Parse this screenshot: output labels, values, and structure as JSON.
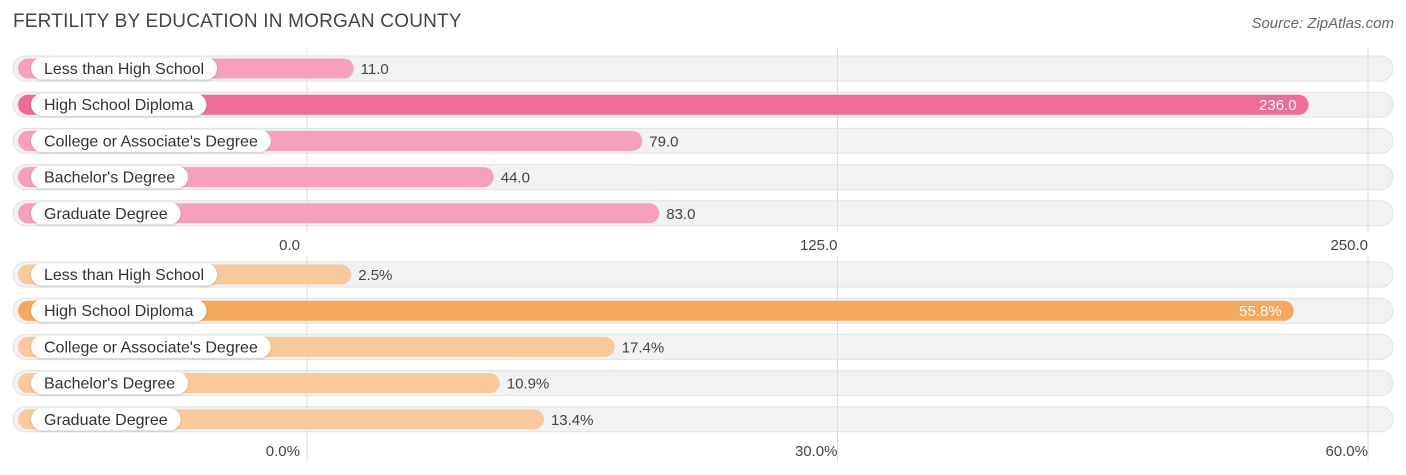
{
  "title": "FERTILITY BY EDUCATION IN MORGAN COUNTY",
  "source": "Source: ZipAtlas.com",
  "colors": {
    "count_bar": "#f7a0bc",
    "count_bar_highlight": "#f06b98",
    "percent_bar": "#f9c99b",
    "percent_bar_highlight": "#f5a95e",
    "track": "#efefef",
    "gridline": "#dddddd"
  },
  "chart_data": [
    {
      "type": "bar",
      "orientation": "horizontal",
      "categories": [
        "Less than High School",
        "High School Diploma",
        "College or Associate's Degree",
        "Bachelor's Degree",
        "Graduate Degree"
      ],
      "values": [
        11.0,
        236.0,
        79.0,
        44.0,
        83.0
      ],
      "value_labels": [
        "11.0",
        "236.0",
        "79.0",
        "44.0",
        "83.0"
      ],
      "highlight_index": 1,
      "xlim": [
        0,
        250
      ],
      "ticks": [
        0,
        125,
        250
      ],
      "tick_labels": [
        "0.0",
        "125.0",
        "250.0"
      ],
      "grid": true
    },
    {
      "type": "bar",
      "orientation": "horizontal",
      "categories": [
        "Less than High School",
        "High School Diploma",
        "College or Associate's Degree",
        "Bachelor's Degree",
        "Graduate Degree"
      ],
      "values": [
        2.5,
        55.8,
        17.4,
        10.9,
        13.4
      ],
      "value_labels": [
        "2.5%",
        "55.8%",
        "17.4%",
        "10.9%",
        "13.4%"
      ],
      "highlight_index": 1,
      "xlim": [
        0,
        60
      ],
      "ticks": [
        0,
        30,
        60
      ],
      "tick_labels": [
        "0.0%",
        "30.0%",
        "60.0%"
      ],
      "grid": true
    }
  ]
}
